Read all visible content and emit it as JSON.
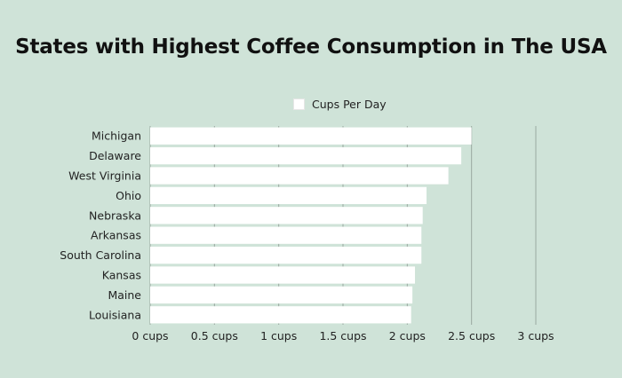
{
  "chart_data": {
    "type": "bar",
    "orientation": "horizontal",
    "title": "States with Highest Coffee Consumption in The USA",
    "legend": {
      "position": "top",
      "entries": [
        "Cups Per Day"
      ]
    },
    "categories": [
      "Michigan",
      "Delaware",
      "West Virginia",
      "Ohio",
      "Nebraska",
      "Arkansas",
      "South Carolina",
      "Kansas",
      "Maine",
      "Louisiana"
    ],
    "series": [
      {
        "name": "Cups Per Day",
        "values": [
          2.5,
          2.42,
          2.32,
          2.15,
          2.12,
          2.11,
          2.11,
          2.06,
          2.04,
          2.03
        ]
      }
    ],
    "xlim": [
      0,
      3
    ],
    "x_ticks": [
      0,
      0.5,
      1,
      1.5,
      2,
      2.5,
      3
    ],
    "x_tick_labels": [
      "0 cups",
      "0.5 cups",
      "1 cups",
      "1.5 cups",
      "2 cups",
      "2.5 cups",
      "3 cups"
    ],
    "grid": true,
    "colors": {
      "bar": "#ffffff",
      "grid": "#9aa8a0",
      "background": "#cfe3d8",
      "text": "#222222"
    }
  }
}
